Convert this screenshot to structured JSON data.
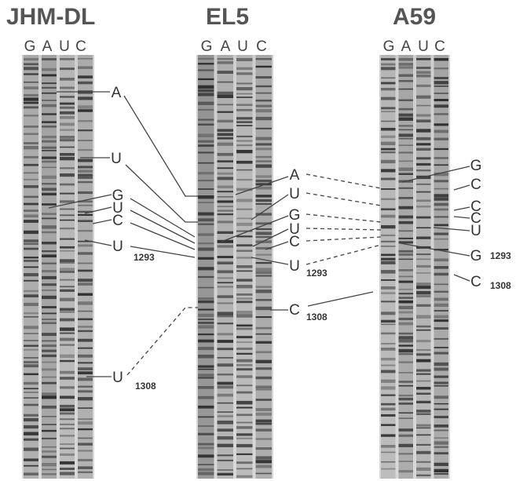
{
  "panels": [
    {
      "title": "JHM-DL",
      "lanes": [
        "G",
        "A",
        "U",
        "C"
      ],
      "labels": [
        {
          "text": "A"
        },
        {
          "text": "U"
        },
        {
          "text": "G"
        },
        {
          "text": "U"
        },
        {
          "text": "C"
        },
        {
          "text": "U",
          "number": "1293"
        },
        {
          "text": "U",
          "number": "1308"
        }
      ]
    },
    {
      "title": "EL5",
      "lanes": [
        "G",
        "A",
        "U",
        "C"
      ],
      "labels": [
        {
          "text": "A"
        },
        {
          "text": "U"
        },
        {
          "text": "G"
        },
        {
          "text": "U"
        },
        {
          "text": "C"
        },
        {
          "text": "U",
          "number": "1293"
        },
        {
          "text": "C",
          "number": "1308"
        }
      ]
    },
    {
      "title": "A59",
      "lanes": [
        "G",
        "A",
        "U",
        "C"
      ],
      "labels": [
        {
          "text": "G"
        },
        {
          "text": "C"
        },
        {
          "text": "C"
        },
        {
          "text": "C"
        },
        {
          "text": "U"
        },
        {
          "text": "G",
          "number": "1293"
        },
        {
          "text": "C",
          "number": "1308"
        }
      ]
    }
  ]
}
